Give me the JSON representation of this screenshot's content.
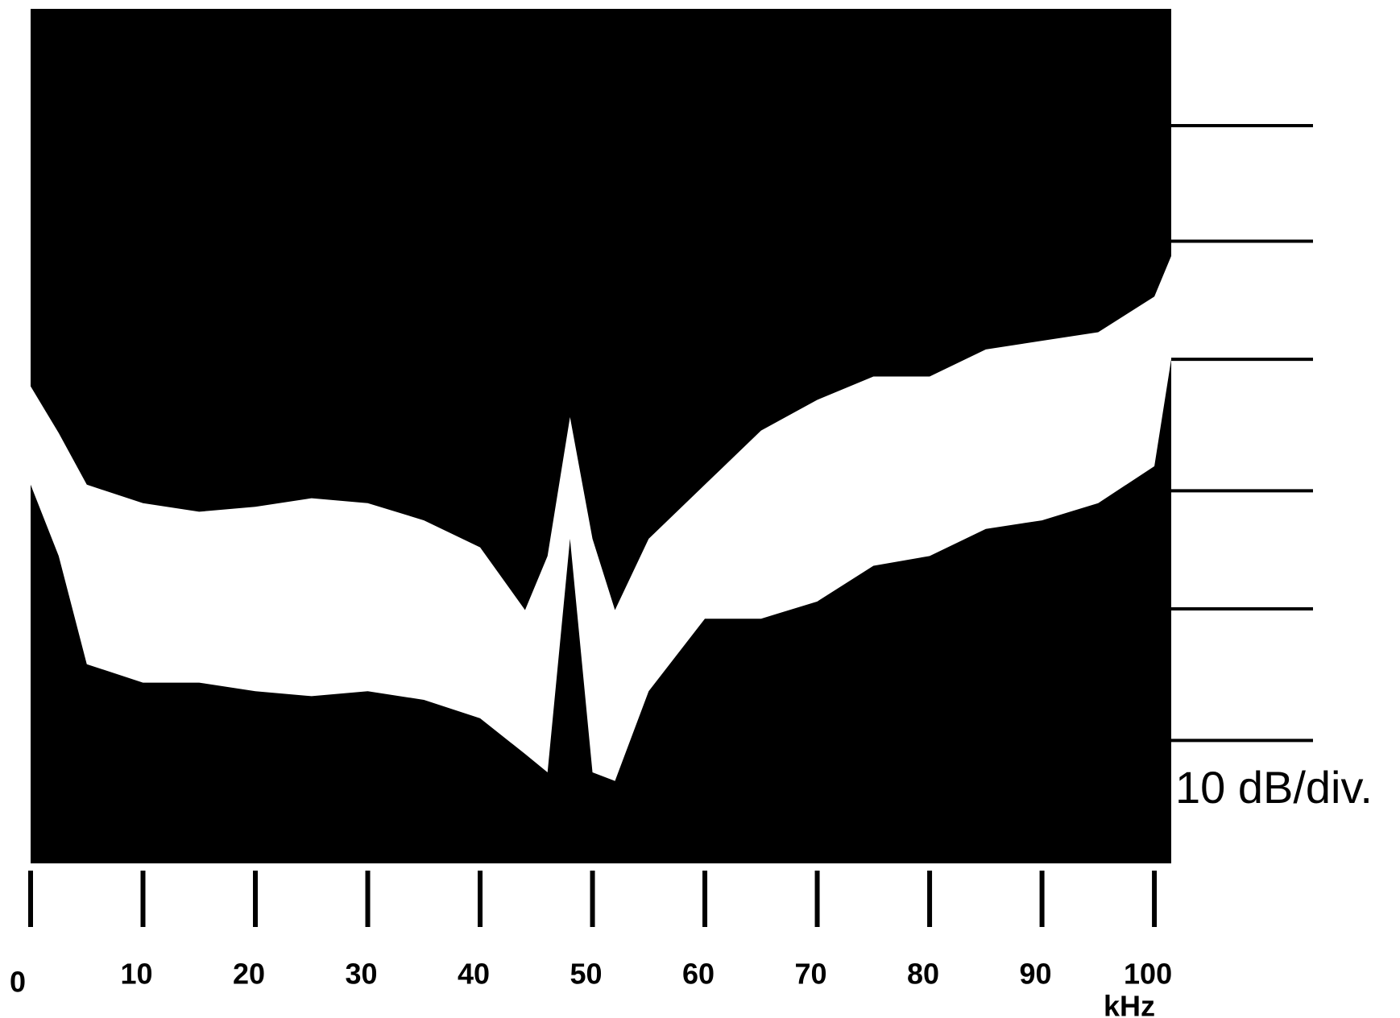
{
  "chart_data": {
    "type": "spectrum",
    "annotation": "10 dB/div.",
    "xlabel": "kHz",
    "xlim": [
      0,
      101.5
    ],
    "xticks": [
      0,
      10,
      20,
      30,
      40,
      50,
      60,
      70,
      80,
      90,
      100
    ],
    "ylim": [
      0,
      69.5
    ],
    "yticks": [
      10,
      20.7,
      30.3,
      41,
      50.6,
      60
    ],
    "x": [
      0,
      2.5,
      5,
      10,
      15,
      20,
      25,
      30,
      35,
      40,
      44,
      46,
      48,
      50,
      52,
      55,
      60,
      65,
      70,
      75,
      80,
      85,
      90,
      95,
      100,
      101.5
    ],
    "upper": [
      38.8,
      35,
      30.8,
      29.3,
      28.6,
      29,
      29.7,
      29.3,
      27.9,
      25.7,
      20.6,
      25,
      36.3,
      26.4,
      20.6,
      26.4,
      30.8,
      35.2,
      37.7,
      39.6,
      39.6,
      41.8,
      42.5,
      43.2,
      46.1,
      49.4
    ],
    "lower": [
      30.8,
      25,
      16.2,
      14.7,
      14.7,
      14,
      13.6,
      14,
      13.3,
      11.8,
      8.9,
      7.4,
      26.4,
      7.4,
      6.7,
      14,
      19.9,
      19.9,
      21.3,
      24.2,
      25,
      27.2,
      27.9,
      29.3,
      32.3,
      41
    ],
    "background": "#000000",
    "color": "#ffffff"
  }
}
